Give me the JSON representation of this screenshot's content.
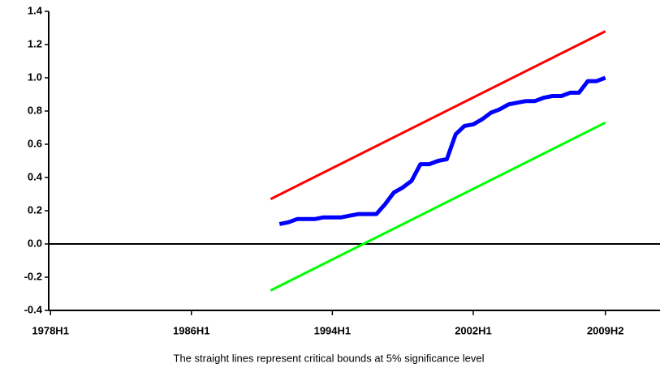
{
  "chart_data": {
    "type": "line",
    "note": "The straight lines represent critical bounds at 5% significance level",
    "xlim": [
      1977.9,
      2012.6
    ],
    "xticks": [
      {
        "value": 1978,
        "label": "1978H1"
      },
      {
        "value": 1986,
        "label": "1986H1"
      },
      {
        "value": 1994,
        "label": "1994H1"
      },
      {
        "value": 2002,
        "label": "2002H1"
      },
      {
        "value": 2009.5,
        "label": "2009H2"
      }
    ],
    "ylim": [
      -0.4,
      1.4
    ],
    "yticks": [
      1.4,
      1.2,
      {
        "value": 1,
        "label": "1.0"
      },
      0.8,
      0.6,
      0.4,
      0.2,
      {
        "value": 0,
        "label": "0.0"
      },
      -0.2,
      -0.4
    ],
    "series": [
      {
        "color": "#ff0000",
        "x": [
          1990.5,
          2009.5
        ],
        "values": [
          0.27,
          1.28
        ]
      },
      {
        "color": "#00ff00",
        "x": [
          1990.5,
          2009.5
        ],
        "values": [
          -0.28,
          0.73
        ]
      },
      {
        "color": "#0000ff",
        "x": [
          1991,
          1991.5,
          1992,
          1992.5,
          1993,
          1993.5,
          1994,
          1994.5,
          1995,
          1995.5,
          1996,
          1996.5,
          1997,
          1997.5,
          1998,
          1998.5,
          1999,
          1999.5,
          2000,
          2000.5,
          2001,
          2001.5,
          2002,
          2002.5,
          2003,
          2003.5,
          2004,
          2004.5,
          2005,
          2005.5,
          2006,
          2006.5,
          2007,
          2007.5,
          2008,
          2008.5,
          2009,
          2009.5
        ],
        "values": [
          0.12,
          0.13,
          0.15,
          0.15,
          0.15,
          0.16,
          0.16,
          0.16,
          0.17,
          0.18,
          0.18,
          0.18,
          0.24,
          0.31,
          0.34,
          0.38,
          0.48,
          0.48,
          0.5,
          0.51,
          0.66,
          0.71,
          0.72,
          0.75,
          0.79,
          0.81,
          0.84,
          0.85,
          0.86,
          0.86,
          0.88,
          0.89,
          0.89,
          0.91,
          0.91,
          0.98,
          0.98,
          1.0
        ]
      }
    ]
  }
}
